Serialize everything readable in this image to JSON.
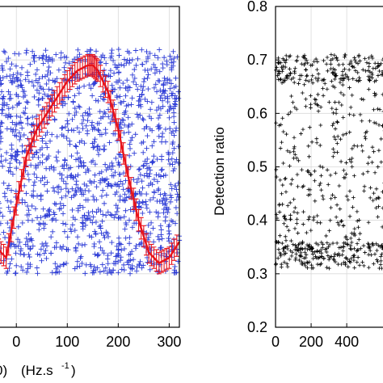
{
  "chart_data": [
    {
      "type": "scatter",
      "panel": "left",
      "xlabel_visible": "(Hz.s",
      "xlabel_sup": "-1",
      "xlabel_close": ")",
      "xlabel_fragment": "0)",
      "xlim": [
        -40,
        320
      ],
      "ylim": [
        0.2,
        0.8
      ],
      "x_ticks": [
        0,
        100,
        200,
        300
      ],
      "x_tick_labels": [
        "0",
        "100",
        "200",
        "300"
      ],
      "grid": true,
      "series": [
        {
          "kind": "scatter",
          "marker": "+",
          "color": "#2c3bd6",
          "x_range": [
            -40,
            320
          ],
          "y_range": [
            0.3,
            0.72
          ],
          "n_points": 1400
        },
        {
          "kind": "line-with-errorbars",
          "color": "#e8141b",
          "x": [
            -40,
            -20,
            0,
            20,
            40,
            60,
            80,
            100,
            120,
            140,
            150,
            160,
            180,
            200,
            220,
            240,
            260,
            280,
            300,
            320
          ],
          "y": [
            0.35,
            0.33,
            0.43,
            0.52,
            0.57,
            0.6,
            0.63,
            0.66,
            0.68,
            0.69,
            0.69,
            0.68,
            0.64,
            0.57,
            0.48,
            0.4,
            0.34,
            0.32,
            0.33,
            0.36
          ],
          "error": 0.02
        }
      ]
    },
    {
      "type": "scatter",
      "panel": "right",
      "ylabel": "Detection ratio",
      "xlim": [
        0,
        640
      ],
      "ylim": [
        0.2,
        0.8
      ],
      "x_ticks": [
        0,
        200,
        400
      ],
      "x_tick_labels": [
        "0",
        "200",
        "400"
      ],
      "y_ticks": [
        0.2,
        0.3,
        0.4,
        0.5,
        0.6,
        0.7,
        0.8
      ],
      "y_tick_labels": [
        "0.2",
        "0.3",
        "0.4",
        "0.5",
        "0.6",
        "0.7",
        "0.8"
      ],
      "grid": true,
      "series": [
        {
          "kind": "scatter",
          "marker": "+",
          "color": "#000000",
          "x_range": [
            0,
            640
          ],
          "y_range": [
            0.3,
            0.71
          ],
          "n_points": 700
        }
      ]
    }
  ]
}
